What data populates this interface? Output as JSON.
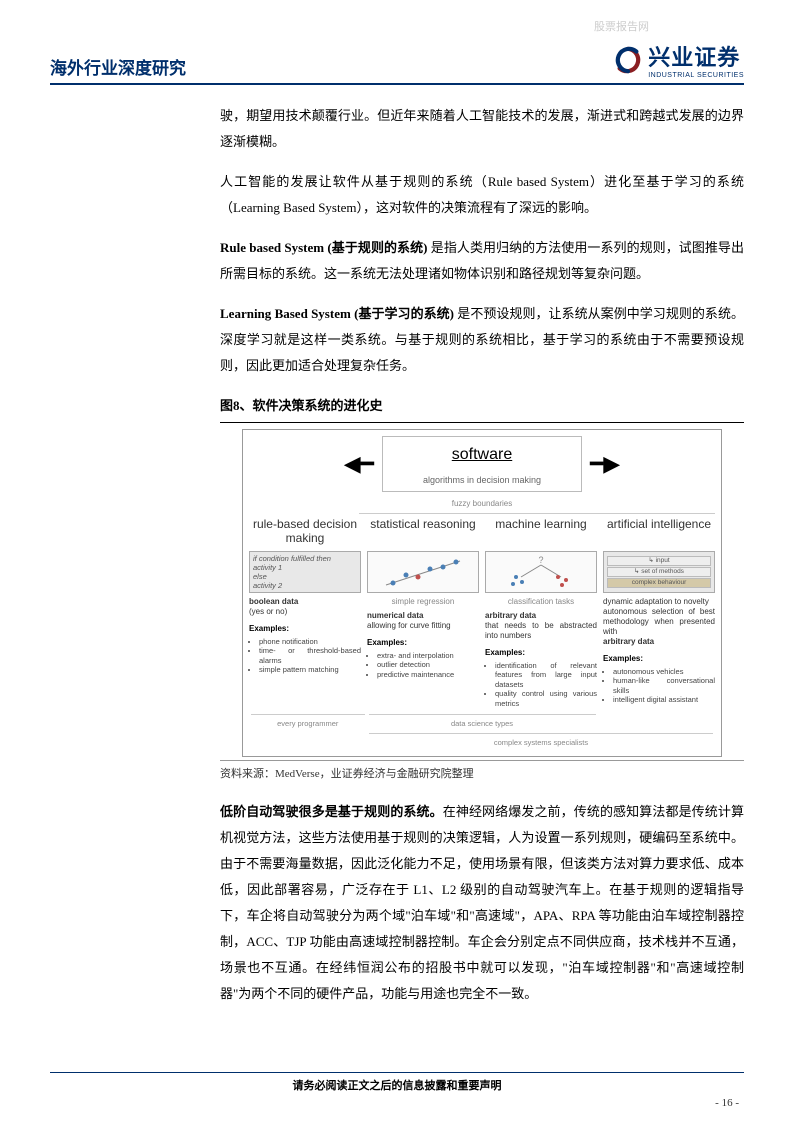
{
  "watermark": "股票报告网",
  "header": {
    "title": "海外行业深度研究",
    "logo_cn": "兴业证券",
    "logo_en": "INDUSTRIAL SECURITIES"
  },
  "para1": "驶，期望用技术颠覆行业。但近年来随着人工智能技术的发展，渐进式和跨越式发展的边界逐渐模糊。",
  "para2": "人工智能的发展让软件从基于规则的系统（Rule based System）进化至基于学习的系统（Learning Based System），这对软件的决策流程有了深远的影响。",
  "para3_bold": "Rule based System (基于规则的系统)",
  "para3_rest": " 是指人类用归纳的方法使用一系列的规则，试图推导出所需目标的系统。这一系统无法处理诸如物体识别和路径规划等复杂问题。",
  "para4_bold": "Learning Based System (基于学习的系统)",
  "para4_rest": " 是不预设规则，让系统从案例中学习规则的系统。深度学习就是这样一类系统。与基于规则的系统相比，基于学习的系统由于不需要预设规则，因此更加适合处理复杂任务。",
  "fig_title": "图8、软件决策系统的进化史",
  "fig_source": "资料来源：MedVerse，业证券经济与金融研究院整理",
  "para5_bold": "低阶自动驾驶很多是基于规则的系统。",
  "para5_rest": "在神经网络爆发之前，传统的感知算法都是传统计算机视觉方法，这些方法使用基于规则的决策逻辑，人为设置一系列规则，硬编码至系统中。由于不需要海量数据，因此泛化能力不足，使用场景有限，但该类方法对算力要求低、成本低，因此部署容易，广泛存在于 L1、L2 级别的自动驾驶汽车上。在基于规则的逻辑指导下，车企将自动驾驶分为两个域\"泊车域\"和\"高速域\"，APA、RPA 等功能由泊车域控制器控制，ACC、TJP 功能由高速域控制器控制。车企会分别定点不同供应商，技术栈并不互通，场景也不互通。在经纬恒润公布的招股书中就可以发现，\"泊车域控制器\"和\"高速域控制器\"为两个不同的硬件产品，功能与用途也完全不一致。",
  "footer_text": "请务必阅读正文之后的信息披露和重要声明",
  "page_num": "- 16 -",
  "diagram": {
    "header": "software",
    "header_sub": "algorithms in decision making",
    "fuzzy": "fuzzy boundaries",
    "cols": [
      {
        "title": "rule-based decision making",
        "box_lines": [
          "if condition fulfilled then",
          "  activity 1",
          "else",
          "  activity 2"
        ],
        "desc_bold": "boolean data",
        "desc": "(yes or no)",
        "ex_title": "Examples:",
        "examples": [
          "phone notification",
          "time- or threshold-based alarms",
          "simple pattern matching"
        ]
      },
      {
        "title": "statistical reasoning",
        "chart": "scatter_line",
        "desc_sub": "simple regression",
        "desc_bold": "numerical data",
        "desc": "allowing for curve fitting",
        "ex_title": "Examples:",
        "examples": [
          "extra- and interpolation",
          "outlier detection",
          "predictive maintenance"
        ]
      },
      {
        "title": "machine learning",
        "chart": "clusters",
        "desc_sub": "classification tasks",
        "desc_bold": "arbitrary data",
        "desc": "that needs to be abstracted into numbers",
        "ex_title": "Examples:",
        "examples": [
          "identification of relevant features from large input datasets",
          "quality control using various metrics"
        ]
      },
      {
        "title": "artificial intelligence",
        "box_is_ai": true,
        "ai_labels": [
          "input",
          "set of methods",
          "complex behaviour"
        ],
        "desc": "dynamic adaptation to novelty\nautonomous selection of best methodology when presented with",
        "desc_bold": "arbitrary data",
        "ex_title": "Examples:",
        "examples": [
          "autonomous vehicles",
          "human-like conversational skills",
          "intelligent digital assistant"
        ]
      }
    ],
    "bottom1": "every programmer",
    "bottom2": "data science types",
    "bottom3": "complex systems specialists",
    "colors": {
      "point_blue": "#4a7fb5",
      "point_red": "#c0504d",
      "line": "#888",
      "arrow": "#333"
    }
  }
}
